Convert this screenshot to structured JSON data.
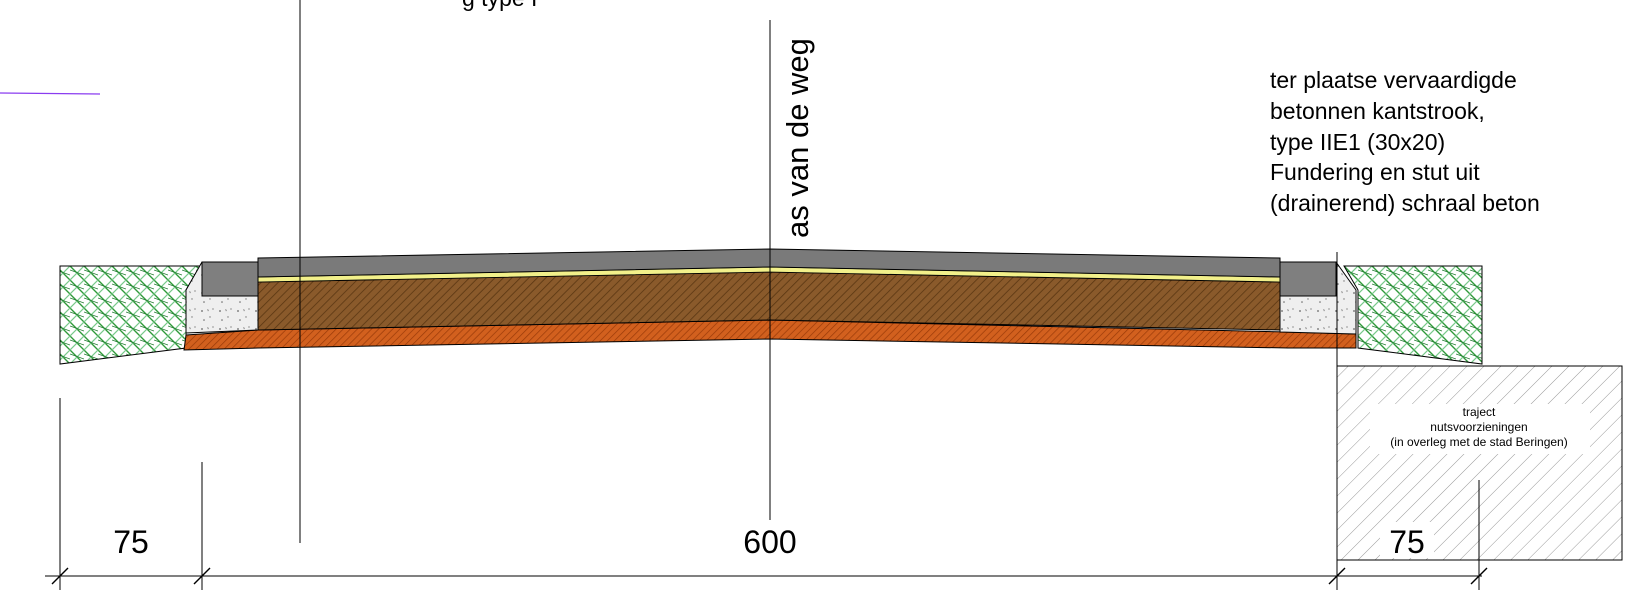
{
  "drawing": {
    "axis_label": "as van de weg",
    "top_fragment": "g type I",
    "kerb_note": [
      "ter plaatse vervaardigde",
      "betonnen kantstrook,",
      "type IIE1 (30x20)",
      "Fundering en stut uit",
      "(drainerend) schraal beton"
    ],
    "utility_note": [
      "traject",
      "nutsvoorzieningen",
      "(in overleg met de stad Beringen)"
    ],
    "dimensions": {
      "left_verge": "75",
      "road_width": "600",
      "right_verge": "75"
    },
    "colors": {
      "asphalt": "#7a7a7a",
      "sand_layer": "#f2f08a",
      "foundation": "#8a5a2b",
      "subbase": "#d2601e",
      "kerb_concrete": "#eaeaea",
      "kerb_top": "#7f7f7f",
      "verge_green": "#3aa845",
      "guide_line": "#8a3cf0"
    }
  }
}
